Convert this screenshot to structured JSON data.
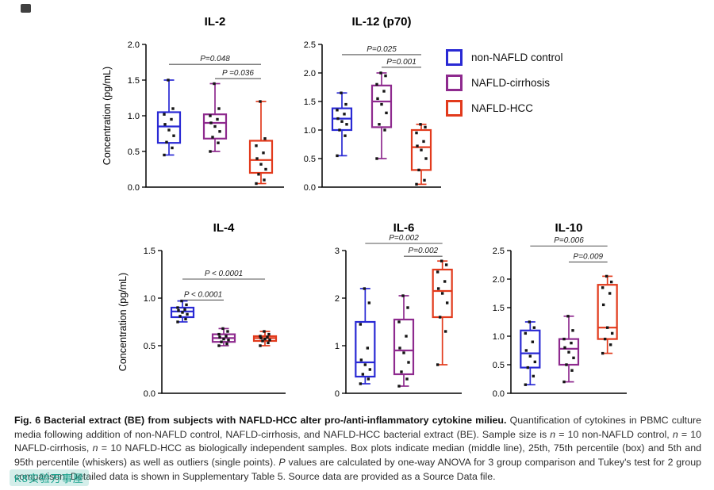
{
  "figure": {
    "colors": {
      "control": "#2929d4",
      "cirrhosis": "#8e2a8e",
      "hcc": "#e23a1c",
      "points": "#151515",
      "axis": "#000000",
      "pline": "#555555"
    },
    "legend": {
      "items": [
        {
          "key": "control",
          "label": "non-NAFLD control"
        },
        {
          "key": "cirrhosis",
          "label": "NAFLD-cirrhosis"
        },
        {
          "key": "hcc",
          "label": "NAFLD-HCC"
        }
      ]
    },
    "caption_segments": [
      {
        "text": "Fig. 6 Bacterial extract (BE) from subjects with NAFLD-HCC alter pro-/anti-inflammatory cytokine milieu. ",
        "bold": true
      },
      {
        "text": "Quantification of cytokines in PBMC culture media following addition of non-NAFLD control, NAFLD-cirrhosis, and NAFLD-HCC bacterial extract (BE). Sample size is "
      },
      {
        "text": "n",
        "italic": true
      },
      {
        "text": " = 10 non-NAFLD control, "
      },
      {
        "text": "n",
        "italic": true
      },
      {
        "text": " = 10 NAFLD-cirrhosis, "
      },
      {
        "text": "n",
        "italic": true
      },
      {
        "text": " = 10 NAFLD-HCC as biologically independent samples. Box plots indicate median (middle line), 25th, 75th percentile (box) and 5th and 95th percentile (whiskers) as well as outliers (single points). "
      },
      {
        "text": "P",
        "italic": true
      },
      {
        "text": " values are calculated by one-way ANOVA for 3 group comparison and Tukey's test for 2 group comparison. Detailed data is shown in Supplementary Table 5. Source data are provided as a Source Data file."
      }
    ],
    "watermark": "K8实验万事屋"
  },
  "chart_data": {
    "type": "box",
    "ylabel_shared": "Concentration (pg/mL)",
    "group_order": [
      "non-NAFLD control",
      "NAFLD-cirrhosis",
      "NAFLD-HCC"
    ],
    "panels": [
      {
        "title": "IL-2",
        "ylabel": "Concentration (pg/mL)",
        "ylim": [
          0,
          2.0
        ],
        "yticks": [
          "0.0",
          "0.5",
          "1.0",
          "1.5",
          "2.0"
        ],
        "groups": [
          {
            "key": "control",
            "low": 0.45,
            "q1": 0.62,
            "median": 0.85,
            "q3": 1.05,
            "high": 1.5,
            "points": [
              0.45,
              0.55,
              0.63,
              0.72,
              0.8,
              0.88,
              0.95,
              1.02,
              1.1,
              1.5
            ]
          },
          {
            "key": "cirrhosis",
            "low": 0.5,
            "q1": 0.68,
            "median": 0.9,
            "q3": 1.02,
            "high": 1.45,
            "points": [
              0.5,
              0.62,
              0.7,
              0.78,
              0.85,
              0.9,
              0.95,
              1.0,
              1.1,
              1.45
            ]
          },
          {
            "key": "hcc",
            "low": 0.05,
            "q1": 0.2,
            "median": 0.38,
            "q3": 0.65,
            "high": 1.2,
            "points": [
              0.05,
              0.1,
              0.18,
              0.25,
              0.32,
              0.4,
              0.48,
              0.58,
              0.68,
              1.2
            ]
          }
        ],
        "comparisons": [
          {
            "from": 0,
            "to": 2,
            "label": "P=0.048",
            "y": 1.72
          },
          {
            "from": 1,
            "to": 2,
            "label": "P =0.036",
            "y": 1.52
          }
        ]
      },
      {
        "title": "IL-12 (p70)",
        "ylabel": "",
        "ylim": [
          0,
          2.5
        ],
        "yticks": [
          "0.0",
          "0.5",
          "1.0",
          "1.5",
          "2.0",
          "2.5"
        ],
        "groups": [
          {
            "key": "control",
            "low": 0.55,
            "q1": 1.0,
            "median": 1.2,
            "q3": 1.38,
            "high": 1.65,
            "points": [
              0.55,
              0.9,
              1.0,
              1.1,
              1.15,
              1.2,
              1.28,
              1.35,
              1.45,
              1.65
            ]
          },
          {
            "key": "cirrhosis",
            "low": 0.5,
            "q1": 1.05,
            "median": 1.5,
            "q3": 1.78,
            "high": 2.0,
            "points": [
              0.5,
              1.0,
              1.1,
              1.3,
              1.45,
              1.55,
              1.68,
              1.8,
              1.95,
              2.0
            ]
          },
          {
            "key": "hcc",
            "low": 0.05,
            "q1": 0.3,
            "median": 0.7,
            "q3": 1.0,
            "high": 1.1,
            "points": [
              0.05,
              0.12,
              0.3,
              0.5,
              0.65,
              0.72,
              0.8,
              0.95,
              1.05,
              1.1
            ]
          }
        ],
        "comparisons": [
          {
            "from": 0,
            "to": 2,
            "label": "P=0.025",
            "y": 2.32
          },
          {
            "from": 1,
            "to": 2,
            "label": "P=0.001",
            "y": 2.1
          }
        ]
      },
      {
        "title": "IL-4",
        "ylabel": "Concentration (pg/mL)",
        "ylim": [
          0,
          1.5
        ],
        "yticks": [
          "0.0",
          "0.5",
          "1.0",
          "1.5"
        ],
        "groups": [
          {
            "key": "control",
            "low": 0.75,
            "q1": 0.8,
            "median": 0.86,
            "q3": 0.9,
            "high": 0.97,
            "points": [
              0.75,
              0.78,
              0.81,
              0.83,
              0.85,
              0.87,
              0.88,
              0.9,
              0.93,
              0.97
            ]
          },
          {
            "key": "cirrhosis",
            "low": 0.5,
            "q1": 0.54,
            "median": 0.58,
            "q3": 0.62,
            "high": 0.68,
            "points": [
              0.5,
              0.52,
              0.54,
              0.56,
              0.57,
              0.59,
              0.6,
              0.62,
              0.65,
              0.68
            ]
          },
          {
            "key": "hcc",
            "low": 0.5,
            "q1": 0.55,
            "median": 0.58,
            "q3": 0.6,
            "high": 0.65,
            "points": [
              0.5,
              0.53,
              0.55,
              0.56,
              0.57,
              0.58,
              0.59,
              0.6,
              0.62,
              0.65
            ]
          }
        ],
        "comparisons": [
          {
            "from": 0,
            "to": 2,
            "label": "P < 0.0001",
            "y": 1.2
          },
          {
            "from": 0,
            "to": 1,
            "label": "P < 0.0001",
            "y": 0.98
          }
        ]
      },
      {
        "title": "IL-6",
        "ylabel": "",
        "ylim": [
          0,
          3
        ],
        "yticks": [
          "0",
          "1",
          "2",
          "3"
        ],
        "groups": [
          {
            "key": "control",
            "low": 0.2,
            "q1": 0.35,
            "median": 0.65,
            "q3": 1.5,
            "high": 2.2,
            "points": [
              0.2,
              0.3,
              0.4,
              0.5,
              0.6,
              0.7,
              0.95,
              1.45,
              1.9,
              2.2
            ]
          },
          {
            "key": "cirrhosis",
            "low": 0.15,
            "q1": 0.4,
            "median": 0.9,
            "q3": 1.55,
            "high": 2.05,
            "points": [
              0.15,
              0.3,
              0.45,
              0.65,
              0.85,
              0.95,
              1.2,
              1.5,
              1.8,
              2.05
            ]
          },
          {
            "key": "hcc",
            "low": 0.6,
            "q1": 1.6,
            "median": 2.15,
            "q3": 2.6,
            "high": 2.78,
            "points": [
              0.6,
              1.3,
              1.6,
              1.9,
              2.1,
              2.2,
              2.35,
              2.55,
              2.7,
              2.78
            ]
          }
        ],
        "comparisons": [
          {
            "from": 0,
            "to": 2,
            "label": "P=0.002",
            "y": 3.15
          },
          {
            "from": 1,
            "to": 2,
            "label": "P=0.002",
            "y": 2.88
          }
        ]
      },
      {
        "title": "IL-10",
        "ylabel": "",
        "ylim": [
          0,
          2.5
        ],
        "yticks": [
          "0.0",
          "0.5",
          "1.0",
          "1.5",
          "2.0",
          "2.5"
        ],
        "groups": [
          {
            "key": "control",
            "low": 0.15,
            "q1": 0.45,
            "median": 0.7,
            "q3": 1.1,
            "high": 1.25,
            "points": [
              0.15,
              0.3,
              0.45,
              0.55,
              0.65,
              0.75,
              0.9,
              1.05,
              1.15,
              1.25
            ]
          },
          {
            "key": "cirrhosis",
            "low": 0.2,
            "q1": 0.5,
            "median": 0.78,
            "q3": 0.95,
            "high": 1.35,
            "points": [
              0.2,
              0.4,
              0.5,
              0.62,
              0.72,
              0.8,
              0.88,
              0.95,
              1.1,
              1.35
            ]
          },
          {
            "key": "hcc",
            "low": 0.7,
            "q1": 0.95,
            "median": 1.15,
            "q3": 1.9,
            "high": 2.05,
            "points": [
              0.7,
              0.85,
              0.95,
              1.05,
              1.15,
              1.55,
              1.75,
              1.85,
              1.95,
              2.05
            ]
          }
        ],
        "comparisons": [
          {
            "from": 0,
            "to": 2,
            "label": "P=0.006",
            "y": 2.58
          },
          {
            "from": 1,
            "to": 2,
            "label": "P=0.009",
            "y": 2.3
          }
        ]
      }
    ]
  }
}
